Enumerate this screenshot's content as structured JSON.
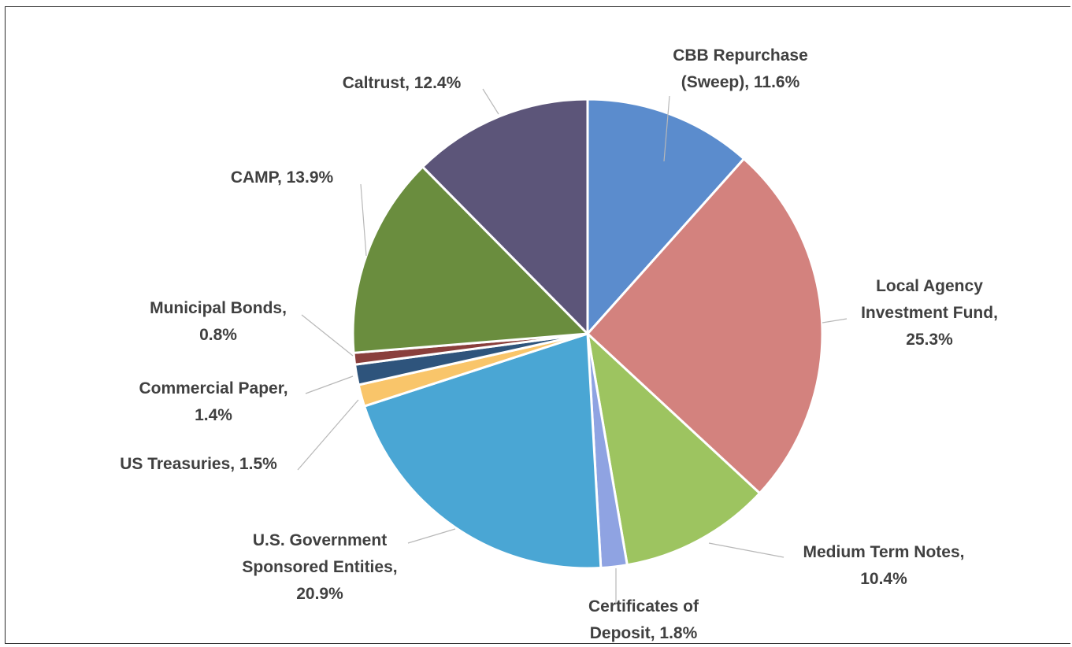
{
  "chart_data": {
    "type": "pie",
    "title": "",
    "slices": [
      {
        "name": "CBB Repurchase (Sweep)",
        "value": 11.6,
        "label_lines": [
          "CBB Repurchase",
          "(Sweep), 11.6%"
        ],
        "color": "#5b8ccd"
      },
      {
        "name": "Local Agency Investment Fund",
        "value": 25.3,
        "label_lines": [
          "Local Agency",
          "Investment Fund,",
          "25.3%"
        ],
        "color": "#d3827e"
      },
      {
        "name": "Medium Term Notes",
        "value": 10.4,
        "label_lines": [
          "Medium Term Notes,",
          "10.4%"
        ],
        "color": "#9dc460"
      },
      {
        "name": "Certificates of Deposit",
        "value": 1.8,
        "label_lines": [
          "Certificates of",
          "Deposit, 1.8%"
        ],
        "color": "#8fa3e2"
      },
      {
        "name": "U.S. Government Sponsored Entities",
        "value": 20.9,
        "label_lines": [
          "U.S. Government",
          "Sponsored Entities,",
          "20.9%"
        ],
        "color": "#4aa6d4"
      },
      {
        "name": "US Treasuries",
        "value": 1.5,
        "label_lines": [
          "US Treasuries, 1.5%"
        ],
        "color": "#f9c56a"
      },
      {
        "name": "Commercial Paper",
        "value": 1.4,
        "label_lines": [
          "Commercial Paper,",
          "1.4%"
        ],
        "color": "#2e547c"
      },
      {
        "name": "Municipal Bonds",
        "value": 0.8,
        "label_lines": [
          "Municipal Bonds,",
          "0.8%"
        ],
        "color": "#8a3f3c"
      },
      {
        "name": "CAMP",
        "value": 13.9,
        "label_lines": [
          "CAMP, 13.9%"
        ],
        "color": "#6a8d3e"
      },
      {
        "name": "Caltrust",
        "value": 12.4,
        "label_lines": [
          "Caltrust, 12.4%"
        ],
        "color": "#5c5579"
      }
    ]
  }
}
